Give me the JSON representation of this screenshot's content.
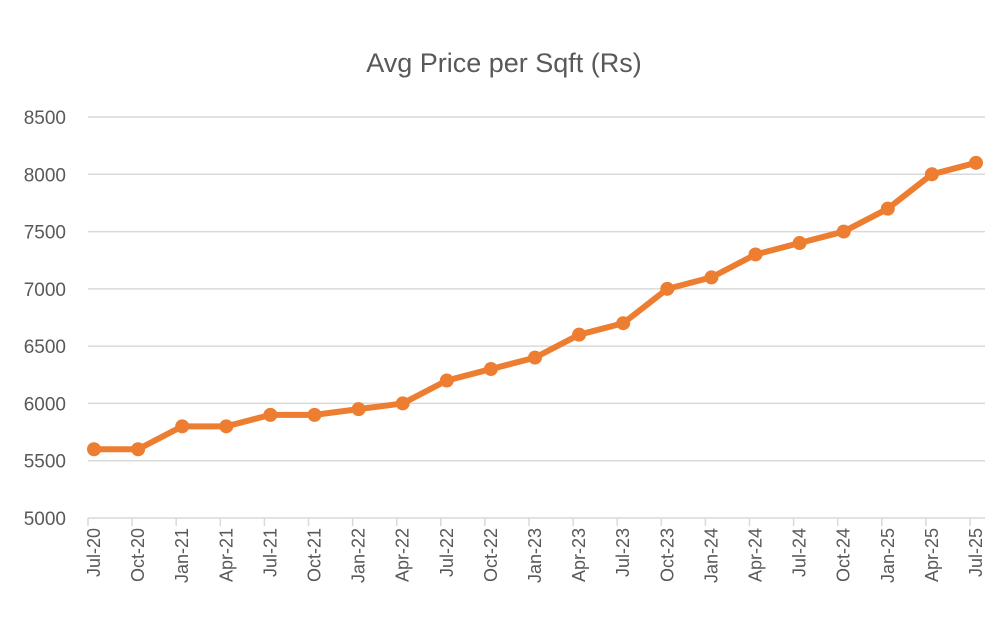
{
  "chart_data": {
    "type": "line",
    "title": "Avg Price per Sqft (Rs)",
    "xlabel": "",
    "ylabel": "",
    "categories": [
      "Jul-20",
      "Oct-20",
      "Jan-21",
      "Apr-21",
      "Jul-21",
      "Oct-21",
      "Jan-22",
      "Apr-22",
      "Jul-22",
      "Oct-22",
      "Jan-23",
      "Apr-23",
      "Jul-23",
      "Oct-23",
      "Jan-24",
      "Apr-24",
      "Jul-24",
      "Oct-24",
      "Jan-25",
      "Apr-25",
      "Jul-25"
    ],
    "values": [
      5600,
      5600,
      5800,
      5800,
      5900,
      5900,
      5950,
      6000,
      6200,
      6300,
      6400,
      6600,
      6700,
      7000,
      7100,
      7300,
      7400,
      7500,
      7700,
      8000,
      8100
    ],
    "ylim": [
      5000,
      8500
    ],
    "yticks": [
      5000,
      5500,
      6000,
      6500,
      7000,
      7500,
      8000,
      8500
    ],
    "grid": true,
    "legend": "none",
    "markers": true,
    "colors": {
      "series": "#ED7D31",
      "grid": "#D9D9D9",
      "text": "#595959"
    }
  }
}
